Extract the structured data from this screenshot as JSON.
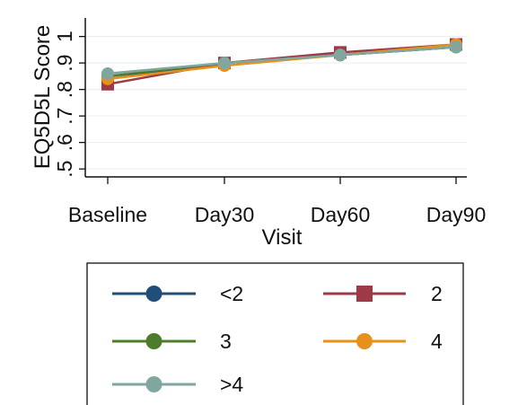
{
  "chart_data": {
    "type": "line",
    "xlabel": "Visit",
    "ylabel": "EQ5D5L Score",
    "categories": [
      "Baseline",
      "Day30",
      "Day60",
      "Day90"
    ],
    "yticks": [
      ".5",
      ".6",
      ".7",
      ".8",
      ".9",
      "1"
    ],
    "ylim": [
      0.47,
      1.07
    ],
    "grid": true,
    "legend": "bottom",
    "series": [
      {
        "name": "<2",
        "color": "#1f4e79",
        "marker": "circle",
        "values": [
          0.84,
          0.9,
          0.93,
          0.96
        ]
      },
      {
        "name": "2",
        "color": "#9e3a45",
        "marker": "square",
        "values": [
          0.82,
          0.9,
          0.94,
          0.97
        ]
      },
      {
        "name": "3",
        "color": "#4b7d2a",
        "marker": "circle",
        "values": [
          0.85,
          0.9,
          0.93,
          0.96
        ]
      },
      {
        "name": "4",
        "color": "#e8901c",
        "marker": "circle",
        "values": [
          0.84,
          0.89,
          0.93,
          0.97
        ]
      },
      {
        "name": ">4",
        "color": "#7fa79f",
        "marker": "circle",
        "values": [
          0.86,
          0.9,
          0.93,
          0.96
        ]
      }
    ]
  }
}
